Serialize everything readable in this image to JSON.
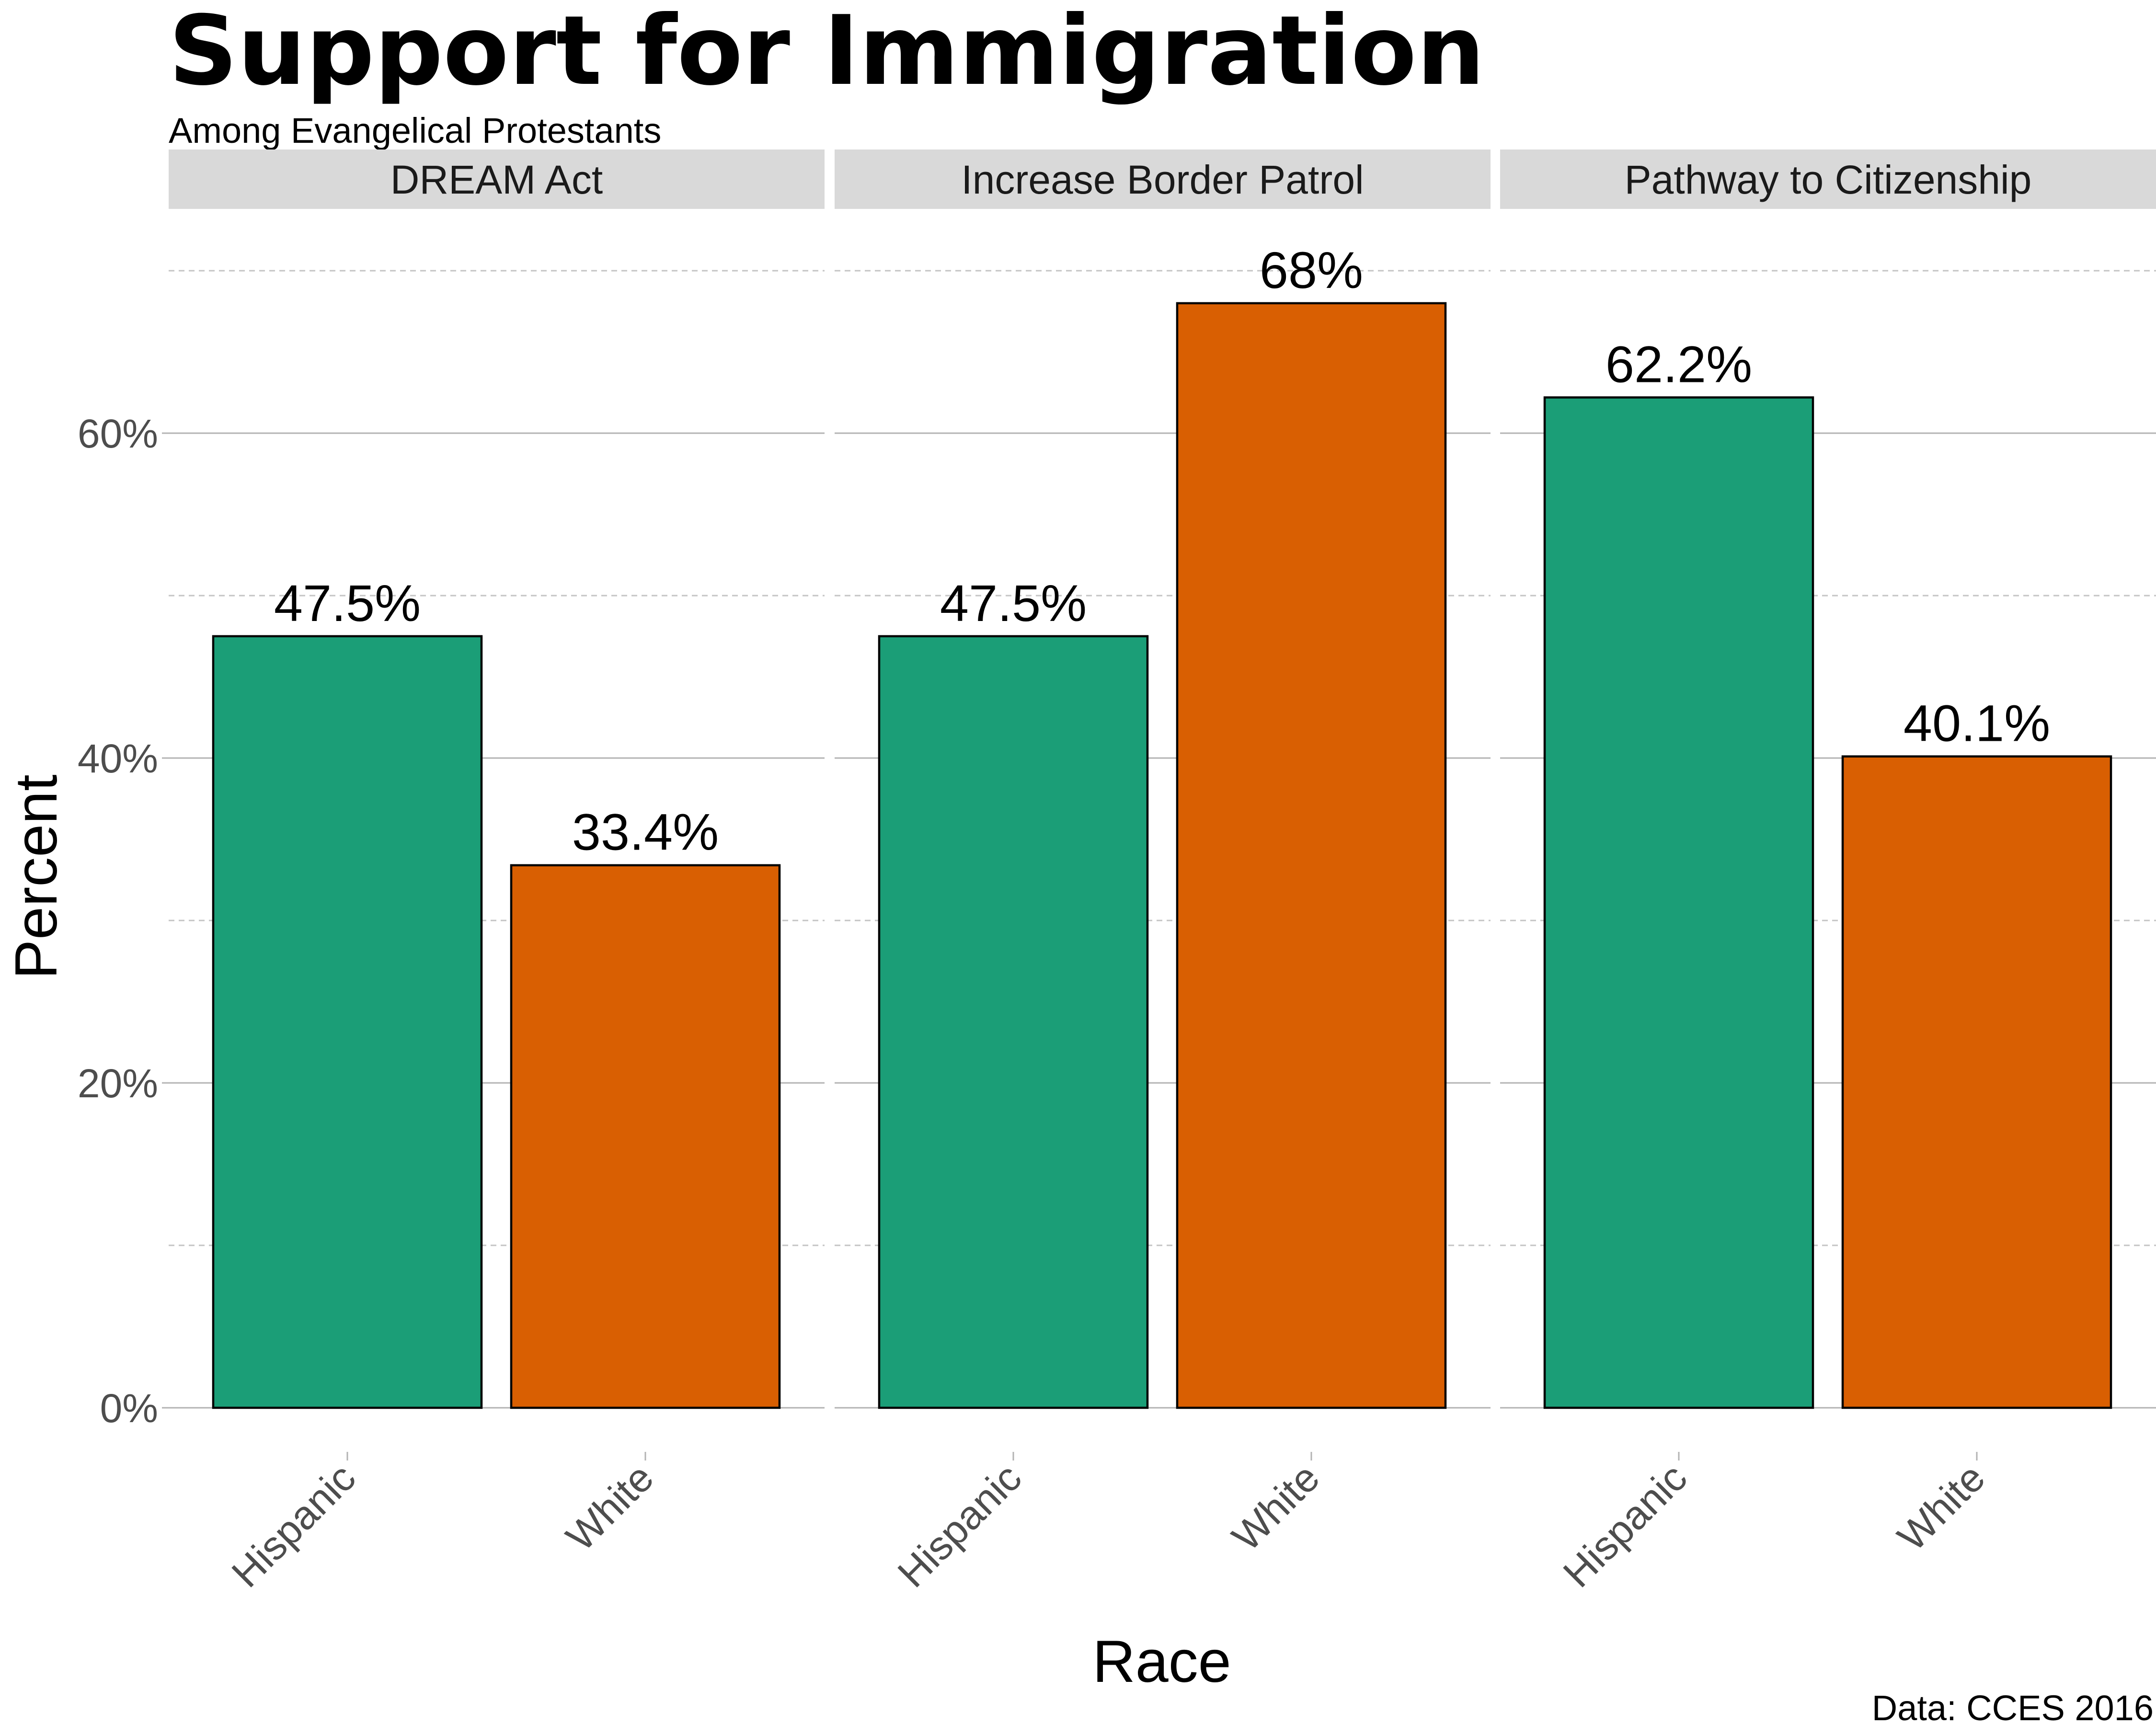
{
  "chart_data": {
    "type": "bar",
    "title": "Support for Immigration",
    "subtitle": "Among Evangelical Protestants",
    "xlabel": "Race",
    "ylabel": "Percent",
    "caption": "Data: CCES 2016",
    "ylim": [
      0,
      70
    ],
    "y_ticks": [
      0,
      20,
      40,
      60
    ],
    "y_tick_labels": [
      "0%",
      "20%",
      "40%",
      "60%"
    ],
    "y_minor_ticks": [
      10,
      30,
      50,
      70
    ],
    "categories": [
      "Hispanic",
      "White"
    ],
    "colors": {
      "Hispanic": "#1b9e77",
      "White": "#d95f02"
    },
    "grid": true,
    "legend": "none",
    "panels": [
      {
        "facet": "DREAM Act",
        "values": [
          47.5,
          33.4
        ],
        "labels": [
          "47.5%",
          "33.4%"
        ]
      },
      {
        "facet": "Increase Border Patrol",
        "values": [
          47.5,
          68
        ],
        "labels": [
          "47.5%",
          "68%"
        ]
      },
      {
        "facet": "Pathway to Citizenship",
        "values": [
          62.2,
          40.1
        ],
        "labels": [
          "62.2%",
          "40.1%"
        ]
      }
    ]
  }
}
